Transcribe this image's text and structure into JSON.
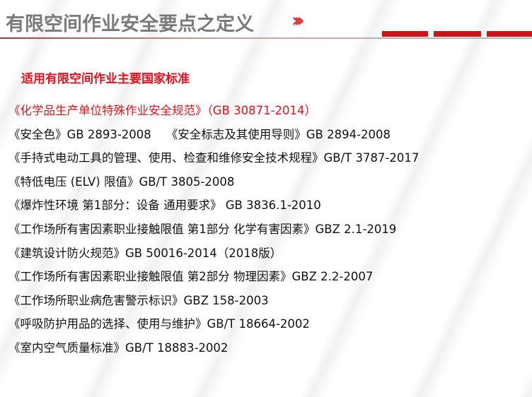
{
  "header": {
    "title": "有限空间作业安全要点之定义",
    "chevron_icon": "double-chevron-right-icon",
    "accent": "#c8141c"
  },
  "subtitle": "适用有限空间作业主要国家标准",
  "standards": [
    "《化学品生产单位特殊作业安全规范》（GB 30871-2014）",
    "《安全色》GB 2893-2008    《安全标志及其使用导则》GB 2894-2008",
    "《手持式电动工具的管理、使用、检查和维修安全技术规程》GB/T 3787-2017",
    "《特低电压 (ELV) 限值》GB/T 3805-2008",
    "《爆炸性环境 第1部分：设备 通用要求》 GB 3836.1-2010",
    "《工作场所有害因素职业接触限值 第1部分 化学有害因素》GBZ 2.1-2019",
    "《建筑设计防火规范》GB 50016-2014（2018版）",
    "《工作场所有害因素职业接触限值 第2部分 物理因素》GBZ 2.2-2007",
    "《工作场所职业病危害警示标识》GBZ 158-2003",
    "《呼吸防护用品的选择、使用与维护》GB/T 18664-2002",
    "《室内空气质量标准》GB/T 18883-2002"
  ]
}
